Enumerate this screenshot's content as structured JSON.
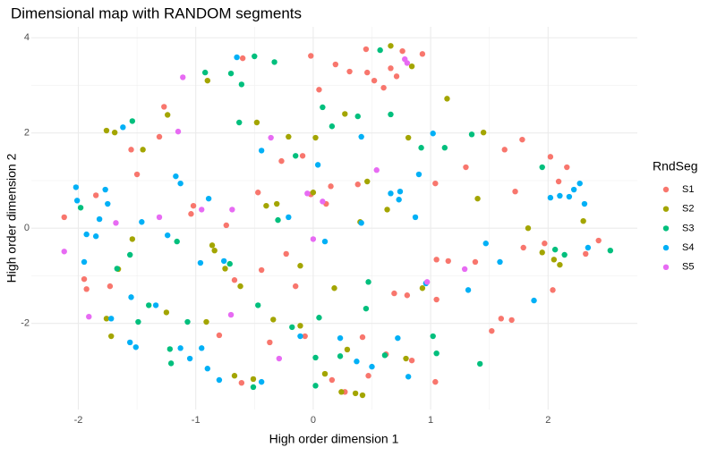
{
  "chart_data": {
    "type": "scatter",
    "title": "Dimensional map with RANDOM segments",
    "x_label": "High order dimension 1",
    "y_label": "High order dimension 2",
    "legend_title": "RndSeg",
    "legend": "right",
    "grid": true,
    "xlim": [
      -2.4,
      2.76
    ],
    "ylim": [
      -3.81,
      4.23
    ],
    "xticks": [
      -2,
      -1,
      0,
      1,
      2
    ],
    "yticks": [
      -2,
      0,
      2,
      4
    ],
    "series": [
      {
        "name": "S1",
        "color": "#F8766D",
        "x": [
          -2.12,
          -1.95,
          -1.93,
          -1.85,
          -1.73,
          -1.55,
          -1.5,
          -1.31,
          -1.27,
          -1.04,
          -1.02,
          -0.67,
          -0.74,
          -0.6,
          -0.8,
          -0.61,
          -0.47,
          -0.44,
          -0.37,
          -0.27,
          -0.23,
          -0.15,
          -0.09,
          -0.02,
          0.05,
          -0.02,
          -0.07,
          0.11,
          0.15,
          0.19,
          0.16,
          0.27,
          0.31,
          0.38,
          0.42,
          0.46,
          0.45,
          0.47,
          0.52,
          0.6,
          0.62,
          0.66,
          0.69,
          0.71,
          0.76,
          0.8,
          0.84,
          0.93,
          1.04,
          1.05,
          1.05,
          1.04,
          1.15,
          1.3,
          1.38,
          1.52,
          1.6,
          1.63,
          1.69,
          1.72,
          1.78,
          1.79,
          1.97,
          2.02,
          2.04,
          2.09,
          2.16,
          2.43,
          2.32
        ],
        "values": [
          0.23,
          -1.07,
          -1.28,
          0.69,
          -1.22,
          1.65,
          1.13,
          1.92,
          2.55,
          0.3,
          0.47,
          -1.09,
          0.06,
          3.57,
          -2.25,
          -3.25,
          0.75,
          -0.88,
          -2.4,
          1.41,
          -0.54,
          -1.22,
          1.52,
          3.62,
          2.91,
          0.71,
          -2.27,
          0.51,
          0.88,
          3.44,
          -3.19,
          -3.44,
          3.29,
          0.92,
          -2.29,
          3.27,
          3.76,
          -3.1,
          3.1,
          2.95,
          -2.65,
          3.36,
          -1.37,
          3.19,
          3.72,
          -1.41,
          -2.78,
          3.66,
          0.94,
          -0.66,
          -1.5,
          -3.23,
          -0.69,
          1.28,
          -0.71,
          -2.16,
          -1.9,
          1.65,
          -1.93,
          0.77,
          1.86,
          -0.41,
          -0.32,
          1.5,
          -1.3,
          0.98,
          1.28,
          -0.26,
          -0.54
        ]
      },
      {
        "name": "S2",
        "color": "#A3A500",
        "x": [
          -1.76,
          -1.69,
          -1.76,
          -1.72,
          -1.66,
          -1.54,
          -1.45,
          -1.24,
          -1.25,
          -0.9,
          -0.86,
          -0.84,
          -0.75,
          -0.91,
          -0.67,
          -0.62,
          -0.48,
          -0.51,
          -0.4,
          -0.34,
          -0.31,
          -0.21,
          -0.11,
          -0.11,
          0,
          0.02,
          0.1,
          0.18,
          0.24,
          0.27,
          0.29,
          0.36,
          0.46,
          0.42,
          0.4,
          0.66,
          0.63,
          0.79,
          0.81,
          0.84,
          1.14,
          0.93,
          1.4,
          1.45,
          1.83,
          1.95,
          2.05,
          2.1,
          2.3
        ],
        "values": [
          2.05,
          2.01,
          -1.9,
          -2.27,
          -0.86,
          -0.23,
          1.65,
          2.38,
          -1.77,
          3.1,
          -0.36,
          -0.47,
          -0.85,
          -1.97,
          -3.1,
          -1.22,
          2.22,
          -3.17,
          0.47,
          -1.92,
          0.51,
          1.92,
          -2.05,
          -0.79,
          0.75,
          1.9,
          -3.06,
          -1.26,
          -3.44,
          2.4,
          -2.55,
          -3.47,
          0.98,
          -3.51,
          0.13,
          3.83,
          0.39,
          -2.74,
          1.9,
          3.4,
          2.72,
          -1.26,
          0.62,
          2.01,
          0,
          -0.51,
          -0.66,
          -0.77,
          0.15
        ]
      },
      {
        "name": "S3",
        "color": "#00BF7D",
        "x": [
          -1.98,
          -1.67,
          -1.56,
          -1.54,
          -1.49,
          -1.4,
          -1.22,
          -1.21,
          -1.16,
          -1.07,
          -0.92,
          -0.71,
          -0.7,
          -0.61,
          -0.63,
          -0.51,
          -0.5,
          -0.47,
          -0.33,
          -0.3,
          -0.15,
          -0.18,
          0.02,
          0.02,
          0.05,
          0.08,
          0.16,
          0.23,
          0.38,
          0.45,
          0.47,
          0.57,
          0.66,
          0.61,
          0.92,
          1.02,
          1.05,
          1.12,
          1.35,
          1.42,
          1.95,
          2.06,
          2.14,
          2.53
        ],
        "values": [
          0.43,
          -0.85,
          -0.56,
          2.25,
          -1.97,
          -1.62,
          -2.54,
          -2.84,
          -0.28,
          -1.97,
          3.27,
          -0.75,
          3.25,
          3.02,
          2.22,
          -3.34,
          3.61,
          -1.62,
          3.49,
          0.17,
          1.52,
          -2.08,
          -2.72,
          -3.31,
          -1.88,
          2.54,
          2.14,
          -2.69,
          2.35,
          -1.69,
          -1.13,
          3.74,
          2.39,
          -2.67,
          1.69,
          -2.27,
          -2.63,
          1.69,
          1.97,
          -2.85,
          1.28,
          -0.45,
          -0.56,
          -0.47
        ]
      },
      {
        "name": "S4",
        "color": "#00B0F6",
        "x": [
          -2.02,
          -2.01,
          -1.95,
          -1.93,
          -1.85,
          -1.82,
          -1.77,
          -1.75,
          -1.72,
          -1.62,
          -1.55,
          -1.56,
          -1.51,
          -1.46,
          -1.34,
          -1.17,
          -1.13,
          -1.24,
          -1.13,
          -1.05,
          -0.96,
          -0.95,
          -0.9,
          -0.89,
          -0.8,
          -0.76,
          -0.65,
          -0.44,
          -0.44,
          -0.21,
          -0.11,
          0.04,
          0.1,
          0.23,
          0.37,
          0.41,
          0.41,
          0.5,
          0.66,
          0.74,
          0.73,
          0.72,
          0.81,
          0.87,
          0.9,
          1.02,
          0.96,
          1.32,
          1.47,
          1.59,
          1.88,
          2.02,
          2.1,
          2.18,
          2.22,
          2.27,
          2.31,
          2.34
        ],
        "values": [
          0.86,
          0.58,
          -0.71,
          -0.13,
          -0.17,
          0.19,
          0.81,
          0.51,
          -1.9,
          2.12,
          -1.45,
          -2.4,
          -2.5,
          0.13,
          -1.62,
          1.09,
          0.94,
          -0.15,
          -2.52,
          -2.74,
          -0.73,
          -2.52,
          -2.95,
          0.62,
          -3.19,
          -0.69,
          3.59,
          1.63,
          -3.23,
          0.23,
          -2.27,
          1.33,
          -0.28,
          -2.31,
          -2.8,
          1.92,
          0.11,
          -2.91,
          0.73,
          0.77,
          0.6,
          -2.31,
          -3.12,
          0.23,
          1.13,
          1.99,
          -1.16,
          -1.3,
          -0.32,
          -0.71,
          -1.52,
          0.64,
          0.68,
          0.66,
          0.81,
          0.94,
          0.51,
          -0.41
        ]
      },
      {
        "name": "S5",
        "color": "#E76BF3",
        "x": [
          -2.12,
          -1.91,
          -1.68,
          -1.31,
          -1.15,
          -1.11,
          -0.95,
          -0.7,
          -0.69,
          -0.36,
          -0.29,
          -0.05,
          0,
          0.08,
          0.54,
          0.78,
          0.8,
          0.97,
          1.29
        ],
        "values": [
          -0.49,
          -1.86,
          0.11,
          0.23,
          2.03,
          3.17,
          0.39,
          -1.82,
          0.39,
          1.9,
          -2.74,
          0.73,
          -0.23,
          0.56,
          1.22,
          3.55,
          3.47,
          -1.13,
          -0.86
        ]
      }
    ]
  }
}
